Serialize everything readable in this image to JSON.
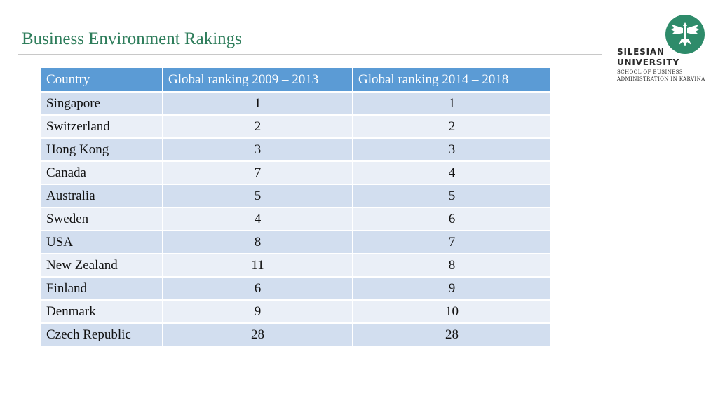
{
  "slide": {
    "title": "Business Environment Rakings"
  },
  "logo": {
    "icon": "eagle-emblem",
    "accent": "#2e8b6a",
    "line1": "SILESIAN",
    "line2": "UNIVERSITY",
    "line3": "SCHOOL OF BUSINESS",
    "line4": "ADMINISTRATION IN KARVINA"
  },
  "table": {
    "headers": [
      "Country",
      "Global ranking 2009 – 2013",
      "Global ranking 2014 – 2018"
    ],
    "header_color": "#5b9bd5",
    "rows": [
      {
        "country": "Singapore",
        "r1": "1",
        "r2": "1"
      },
      {
        "country": "Switzerland",
        "r1": "2",
        "r2": "2"
      },
      {
        "country": "Hong Kong",
        "r1": "3",
        "r2": "3"
      },
      {
        "country": "Canada",
        "r1": "7",
        "r2": "4"
      },
      {
        "country": "Australia",
        "r1": "5",
        "r2": "5"
      },
      {
        "country": "Sweden",
        "r1": "4",
        "r2": "6"
      },
      {
        "country": "USA",
        "r1": "8",
        "r2": "7"
      },
      {
        "country": "New Zealand",
        "r1": "11",
        "r2": "8"
      },
      {
        "country": "Finland",
        "r1": "6",
        "r2": "9"
      },
      {
        "country": "Denmark",
        "r1": "9",
        "r2": "10"
      },
      {
        "country": "Czech Republic",
        "r1": "28",
        "r2": "28"
      }
    ]
  }
}
